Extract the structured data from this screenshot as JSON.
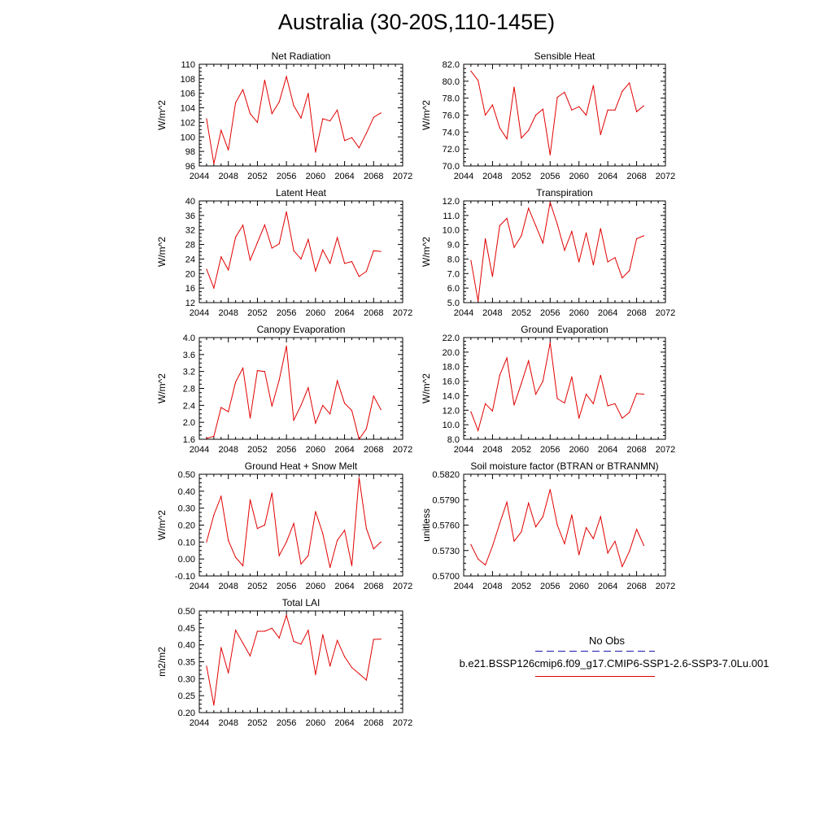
{
  "title": "Australia (30-20S,110-145E)",
  "colors": {
    "model_line": "#e00000",
    "obs_line": "#1a1aaa",
    "axis": "#000000"
  },
  "x_ticks": [
    2044,
    2048,
    2052,
    2056,
    2060,
    2064,
    2068,
    2072
  ],
  "legend": {
    "obs_label": "No Obs",
    "model_label": "b.e21.BSSP126cmip6.f09_g17.CMIP6-SSP1-2.6-SSP3-7.0Lu.001"
  },
  "chart_data": [
    {
      "type": "line",
      "title": "Net Radiation",
      "ylabel": "W/m^2",
      "xlim": [
        2044,
        2072
      ],
      "ylim": [
        96,
        110
      ],
      "yticks": [
        "96",
        "98",
        "100",
        "102",
        "104",
        "106",
        "108",
        "110"
      ],
      "x": [
        2045,
        2046,
        2047,
        2048,
        2049,
        2050,
        2051,
        2052,
        2053,
        2054,
        2055,
        2056,
        2057,
        2058,
        2059,
        2060,
        2061,
        2062,
        2063,
        2064,
        2065,
        2066,
        2067,
        2068,
        2069
      ],
      "values": [
        102.5,
        96.3,
        100.9,
        98.2,
        104.7,
        106.5,
        103.2,
        102.0,
        107.8,
        103.2,
        104.8,
        108.3,
        104.3,
        102.6,
        106.0,
        97.9,
        102.5,
        102.2,
        103.7,
        99.5,
        99.9,
        98.5,
        100.5,
        102.7,
        103.3
      ]
    },
    {
      "type": "line",
      "title": "Sensible Heat",
      "ylabel": "W/m^2",
      "xlim": [
        2044,
        2072
      ],
      "ylim": [
        70,
        82
      ],
      "yticks": [
        "70.0",
        "72.0",
        "74.0",
        "76.0",
        "78.0",
        "80.0",
        "82.0"
      ],
      "x": [
        2045,
        2046,
        2047,
        2048,
        2049,
        2050,
        2051,
        2052,
        2053,
        2054,
        2055,
        2056,
        2057,
        2058,
        2059,
        2060,
        2061,
        2062,
        2063,
        2064,
        2065,
        2066,
        2067,
        2068,
        2069
      ],
      "values": [
        81.2,
        80.1,
        76.0,
        77.2,
        74.5,
        73.2,
        79.3,
        73.3,
        74.2,
        76.0,
        76.7,
        71.3,
        78.1,
        78.7,
        76.6,
        77.0,
        76.0,
        79.5,
        73.7,
        76.6,
        76.6,
        78.8,
        79.8,
        76.4,
        77.1
      ]
    },
    {
      "type": "line",
      "title": "Latent Heat",
      "ylabel": "W/m^2",
      "xlim": [
        2044,
        2072
      ],
      "ylim": [
        12,
        40
      ],
      "yticks": [
        "12",
        "16",
        "20",
        "24",
        "28",
        "32",
        "36",
        "40"
      ],
      "x": [
        2045,
        2046,
        2047,
        2048,
        2049,
        2050,
        2051,
        2052,
        2053,
        2054,
        2055,
        2056,
        2057,
        2058,
        2059,
        2060,
        2061,
        2062,
        2063,
        2064,
        2065,
        2066,
        2067,
        2068,
        2069
      ],
      "values": [
        21.2,
        16.0,
        24.6,
        21.0,
        30.0,
        33.3,
        23.7,
        28.5,
        33.4,
        27.0,
        28.2,
        37.0,
        26.3,
        24.0,
        29.4,
        20.7,
        26.5,
        22.8,
        29.9,
        22.8,
        23.3,
        19.2,
        20.6,
        26.3,
        26.1
      ]
    },
    {
      "type": "line",
      "title": "Transpiration",
      "ylabel": "W/m^2",
      "xlim": [
        2044,
        2072
      ],
      "ylim": [
        5,
        12
      ],
      "yticks": [
        "5.0",
        "6.0",
        "7.0",
        "8.0",
        "9.0",
        "10.0",
        "11.0",
        "12.0"
      ],
      "x": [
        2045,
        2046,
        2047,
        2048,
        2049,
        2050,
        2051,
        2052,
        2053,
        2054,
        2055,
        2056,
        2057,
        2058,
        2059,
        2060,
        2061,
        2062,
        2063,
        2064,
        2065,
        2066,
        2067,
        2068,
        2069
      ],
      "values": [
        7.9,
        5.1,
        9.4,
        6.8,
        10.3,
        10.8,
        8.8,
        9.6,
        11.5,
        10.3,
        9.1,
        11.9,
        10.4,
        8.6,
        9.9,
        7.8,
        9.8,
        7.6,
        10.1,
        7.8,
        8.1,
        6.7,
        7.2,
        9.4,
        9.6
      ]
    },
    {
      "type": "line",
      "title": "Canopy Evaporation",
      "ylabel": "W/m^2",
      "xlim": [
        2044,
        2072
      ],
      "ylim": [
        1.6,
        4.0
      ],
      "yticks": [
        "1.6",
        "2.0",
        "2.4",
        "2.8",
        "3.2",
        "3.6",
        "4.0"
      ],
      "x": [
        2045,
        2046,
        2047,
        2048,
        2049,
        2050,
        2051,
        2052,
        2053,
        2054,
        2055,
        2056,
        2057,
        2058,
        2059,
        2060,
        2061,
        2062,
        2063,
        2064,
        2065,
        2066,
        2067,
        2068,
        2069
      ],
      "values": [
        1.62,
        1.67,
        2.35,
        2.25,
        2.95,
        3.28,
        2.1,
        3.22,
        3.2,
        2.38,
        3.0,
        3.8,
        2.05,
        2.4,
        2.82,
        1.98,
        2.4,
        2.2,
        2.98,
        2.45,
        2.28,
        1.6,
        1.85,
        2.62,
        2.3
      ]
    },
    {
      "type": "line",
      "title": "Ground Evaporation",
      "ylabel": "W/m^2",
      "xlim": [
        2044,
        2072
      ],
      "ylim": [
        8,
        22
      ],
      "yticks": [
        "8.0",
        "10.0",
        "12.0",
        "14.0",
        "16.0",
        "18.0",
        "20.0",
        "22.0"
      ],
      "x": [
        2045,
        2046,
        2047,
        2048,
        2049,
        2050,
        2051,
        2052,
        2053,
        2054,
        2055,
        2056,
        2057,
        2058,
        2059,
        2060,
        2061,
        2062,
        2063,
        2064,
        2065,
        2066,
        2067,
        2068,
        2069
      ],
      "values": [
        11.8,
        9.2,
        12.9,
        11.9,
        16.8,
        19.2,
        12.7,
        15.7,
        18.8,
        14.2,
        16.0,
        21.3,
        13.6,
        13.0,
        16.6,
        10.9,
        14.2,
        12.9,
        16.8,
        12.6,
        12.9,
        10.9,
        11.7,
        14.3,
        14.2
      ]
    },
    {
      "type": "line",
      "title": "Ground Heat + Snow Melt",
      "ylabel": "W/m^2",
      "xlim": [
        2044,
        2072
      ],
      "ylim": [
        -0.1,
        0.5
      ],
      "yticks": [
        "-0.10",
        "0.00",
        "0.10",
        "0.20",
        "0.30",
        "0.40",
        "0.50"
      ],
      "x": [
        2045,
        2046,
        2047,
        2048,
        2049,
        2050,
        2051,
        2052,
        2053,
        2054,
        2055,
        2056,
        2057,
        2058,
        2059,
        2060,
        2061,
        2062,
        2063,
        2064,
        2065,
        2066,
        2067,
        2068,
        2069
      ],
      "values": [
        0.1,
        0.26,
        0.37,
        0.11,
        0.01,
        -0.04,
        0.35,
        0.18,
        0.2,
        0.39,
        0.02,
        0.1,
        0.21,
        -0.03,
        0.02,
        0.28,
        0.15,
        -0.05,
        0.11,
        0.17,
        -0.04,
        0.48,
        0.18,
        0.06,
        0.1
      ]
    },
    {
      "type": "line",
      "title": "Soil moisture factor (BTRAN or BTRANMN)",
      "ylabel": "unitless",
      "xlim": [
        2044,
        2072
      ],
      "ylim": [
        0.57,
        0.582
      ],
      "yticks": [
        "0.5700",
        "0.5730",
        "0.5760",
        "0.5790",
        "0.5820"
      ],
      "x": [
        2045,
        2046,
        2047,
        2048,
        2049,
        2050,
        2051,
        2052,
        2053,
        2054,
        2055,
        2056,
        2057,
        2058,
        2059,
        2060,
        2061,
        2062,
        2063,
        2064,
        2065,
        2066,
        2067,
        2068,
        2069
      ],
      "values": [
        0.5737,
        0.572,
        0.5713,
        0.5735,
        0.5762,
        0.5787,
        0.5741,
        0.5752,
        0.5786,
        0.5758,
        0.577,
        0.5802,
        0.576,
        0.5738,
        0.5772,
        0.5725,
        0.5757,
        0.5744,
        0.577,
        0.5727,
        0.5741,
        0.5711,
        0.5729,
        0.5755,
        0.5736
      ]
    },
    {
      "type": "line",
      "title": "Total LAI",
      "ylabel": "m2/m2",
      "xlim": [
        2044,
        2072
      ],
      "ylim": [
        0.2,
        0.5
      ],
      "yticks": [
        "0.20",
        "0.25",
        "0.30",
        "0.35",
        "0.40",
        "0.45",
        "0.50"
      ],
      "x": [
        2045,
        2046,
        2047,
        2048,
        2049,
        2050,
        2051,
        2052,
        2053,
        2054,
        2055,
        2056,
        2057,
        2058,
        2059,
        2060,
        2061,
        2062,
        2063,
        2064,
        2065,
        2066,
        2067,
        2068,
        2069
      ],
      "values": [
        0.337,
        0.222,
        0.392,
        0.317,
        0.443,
        0.405,
        0.367,
        0.44,
        0.44,
        0.449,
        0.42,
        0.487,
        0.41,
        0.402,
        0.443,
        0.312,
        0.43,
        0.337,
        0.413,
        0.365,
        0.333,
        0.315,
        0.296,
        0.416,
        0.417
      ]
    }
  ]
}
